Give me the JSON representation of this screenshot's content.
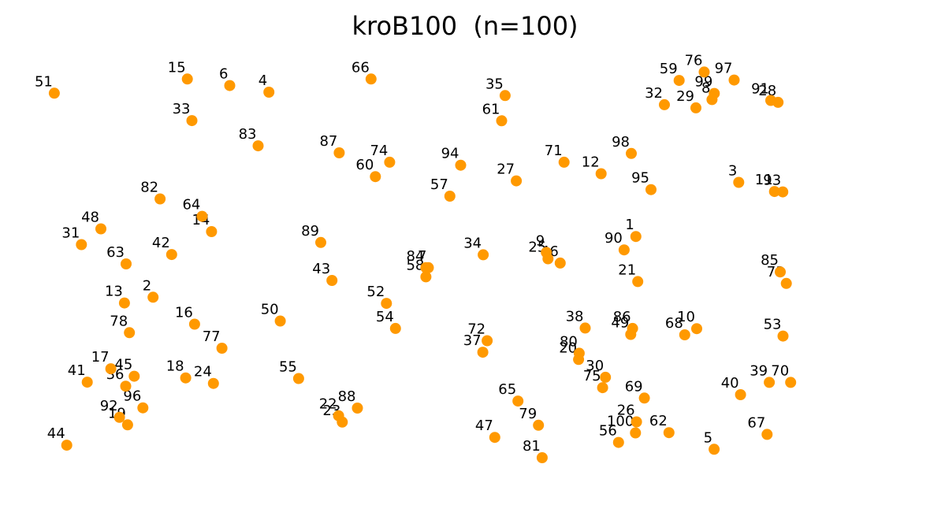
{
  "chart_data": {
    "type": "scatter",
    "title": "kroB100  (n=100)",
    "xlabel": "",
    "ylabel": "",
    "axes_visible": false,
    "grid": false,
    "marker_color": "#ff9900",
    "xlim": [
      0,
      4000
    ],
    "ylim": [
      0,
      2000
    ],
    "points": [
      {
        "label": "1",
        "x": 2826,
        "y": 1168
      },
      {
        "label": "2",
        "x": 492,
        "y": 882
      },
      {
        "label": "3",
        "x": 3323,
        "y": 1423
      },
      {
        "label": "4",
        "x": 1052,
        "y": 1848
      },
      {
        "label": "5",
        "x": 3204,
        "y": 166
      },
      {
        "label": "6",
        "x": 863,
        "y": 1879
      },
      {
        "label": "7",
        "x": 1823,
        "y": 1021
      },
      {
        "label": "8",
        "x": 3194,
        "y": 1813
      },
      {
        "label": "9",
        "x": 2393,
        "y": 1093
      },
      {
        "label": "10",
        "x": 3120,
        "y": 734
      },
      {
        "label": "11",
        "x": 3496,
        "y": 1380
      },
      {
        "label": "12",
        "x": 2658,
        "y": 1464
      },
      {
        "label": "13",
        "x": 354,
        "y": 855
      },
      {
        "label": "14",
        "x": 775,
        "y": 1191
      },
      {
        "label": "15",
        "x": 658,
        "y": 1910
      },
      {
        "label": "16",
        "x": 693,
        "y": 755
      },
      {
        "label": "17",
        "x": 288,
        "y": 545
      },
      {
        "label": "18",
        "x": 650,
        "y": 502
      },
      {
        "label": "19",
        "x": 369,
        "y": 281
      },
      {
        "label": "20",
        "x": 2549,
        "y": 589
      },
      {
        "label": "21",
        "x": 2835,
        "y": 956
      },
      {
        "label": "22",
        "x": 1389,
        "y": 324
      },
      {
        "label": "23",
        "x": 1407,
        "y": 294
      },
      {
        "label": "24",
        "x": 784,
        "y": 476
      },
      {
        "label": "25",
        "x": 2401,
        "y": 1063
      },
      {
        "label": "26",
        "x": 2829,
        "y": 295
      },
      {
        "label": "27",
        "x": 2248,
        "y": 1430
      },
      {
        "label": "28",
        "x": 3513,
        "y": 1800
      },
      {
        "label": "29",
        "x": 3116,
        "y": 1774
      },
      {
        "label": "30",
        "x": 2679,
        "y": 505
      },
      {
        "label": "31",
        "x": 146,
        "y": 1130
      },
      {
        "label": "32",
        "x": 2964,
        "y": 1789
      },
      {
        "label": "33",
        "x": 680,
        "y": 1714
      },
      {
        "label": "34",
        "x": 2088,
        "y": 1082
      },
      {
        "label": "35",
        "x": 2194,
        "y": 1832
      },
      {
        "label": "36",
        "x": 360,
        "y": 463
      },
      {
        "label": "37",
        "x": 2086,
        "y": 623
      },
      {
        "label": "38",
        "x": 2581,
        "y": 737
      },
      {
        "label": "39",
        "x": 3471,
        "y": 481
      },
      {
        "label": "40",
        "x": 3332,
        "y": 423
      },
      {
        "label": "41",
        "x": 174,
        "y": 482
      },
      {
        "label": "42",
        "x": 582,
        "y": 1083
      },
      {
        "label": "43",
        "x": 1357,
        "y": 961
      },
      {
        "label": "44",
        "x": 75,
        "y": 185
      },
      {
        "label": "45",
        "x": 401,
        "y": 510
      },
      {
        "label": "46",
        "x": 2460,
        "y": 1043
      },
      {
        "label": "47",
        "x": 2144,
        "y": 222
      },
      {
        "label": "48",
        "x": 240,
        "y": 1204
      },
      {
        "label": "49",
        "x": 2801,
        "y": 707
      },
      {
        "label": "50",
        "x": 1107,
        "y": 770
      },
      {
        "label": "51",
        "x": 15,
        "y": 1843
      },
      {
        "label": "52",
        "x": 1620,
        "y": 853
      },
      {
        "label": "53",
        "x": 3537,
        "y": 699
      },
      {
        "label": "54",
        "x": 1664,
        "y": 735
      },
      {
        "label": "55",
        "x": 1196,
        "y": 499
      },
      {
        "label": "56",
        "x": 2742,
        "y": 198
      },
      {
        "label": "57",
        "x": 1927,
        "y": 1358
      },
      {
        "label": "58",
        "x": 1811,
        "y": 978
      },
      {
        "label": "59",
        "x": 3035,
        "y": 1903
      },
      {
        "label": "60",
        "x": 1567,
        "y": 1450
      },
      {
        "label": "61",
        "x": 2177,
        "y": 1713
      },
      {
        "label": "62",
        "x": 2986,
        "y": 244
      },
      {
        "label": "63",
        "x": 362,
        "y": 1039
      },
      {
        "label": "64",
        "x": 729,
        "y": 1263
      },
      {
        "label": "65",
        "x": 2256,
        "y": 393
      },
      {
        "label": "66",
        "x": 1546,
        "y": 1910
      },
      {
        "label": "67",
        "x": 3460,
        "y": 236
      },
      {
        "label": "68",
        "x": 3062,
        "y": 705
      },
      {
        "label": "69",
        "x": 2867,
        "y": 407
      },
      {
        "label": "70",
        "x": 3574,
        "y": 481
      },
      {
        "label": "71",
        "x": 2479,
        "y": 1518
      },
      {
        "label": "72",
        "x": 2107,
        "y": 677
      },
      {
        "label": "73",
        "x": 3553,
        "y": 947
      },
      {
        "label": "74",
        "x": 1636,
        "y": 1518
      },
      {
        "label": "75",
        "x": 2665,
        "y": 456
      },
      {
        "label": "76",
        "x": 3156,
        "y": 1943
      },
      {
        "label": "77",
        "x": 825,
        "y": 642
      },
      {
        "label": "78",
        "x": 378,
        "y": 715
      },
      {
        "label": "79",
        "x": 2355,
        "y": 279
      },
      {
        "label": "80",
        "x": 2552,
        "y": 618
      },
      {
        "label": "81",
        "x": 2373,
        "y": 126
      },
      {
        "label": "82",
        "x": 526,
        "y": 1345
      },
      {
        "label": "83",
        "x": 1000,
        "y": 1595
      },
      {
        "label": "84",
        "x": 1811,
        "y": 1021
      },
      {
        "label": "85",
        "x": 3524,
        "y": 1001
      },
      {
        "label": "86",
        "x": 2810,
        "y": 735
      },
      {
        "label": "87",
        "x": 1392,
        "y": 1562
      },
      {
        "label": "88",
        "x": 1480,
        "y": 360
      },
      {
        "label": "89",
        "x": 1303,
        "y": 1140
      },
      {
        "label": "90",
        "x": 2769,
        "y": 1105
      },
      {
        "label": "91",
        "x": 3478,
        "y": 1809
      },
      {
        "label": "92",
        "x": 330,
        "y": 316
      },
      {
        "label": "93",
        "x": 3536,
        "y": 1378
      },
      {
        "label": "94",
        "x": 1979,
        "y": 1504
      },
      {
        "label": "95",
        "x": 2899,
        "y": 1389
      },
      {
        "label": "96",
        "x": 443,
        "y": 361
      },
      {
        "label": "97",
        "x": 3301,
        "y": 1905
      },
      {
        "label": "98",
        "x": 2804,
        "y": 1559
      },
      {
        "label": "99",
        "x": 3205,
        "y": 1842
      },
      {
        "label": "100",
        "x": 2824,
        "y": 243
      }
    ]
  }
}
